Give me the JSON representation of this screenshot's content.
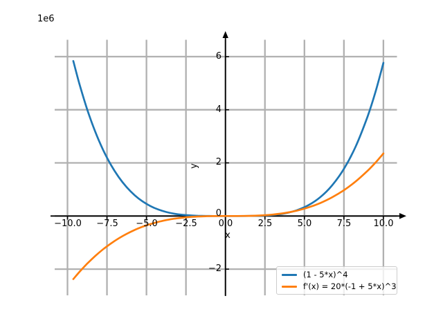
{
  "chart_data": {
    "type": "line",
    "xlabel": "x",
    "ylabel": "y",
    "y_offset_label": "1e6",
    "grid": true,
    "legend_position": "lower right",
    "xlim": [
      -10.8,
      11.3
    ],
    "ylim": [
      -3000000,
      6650000
    ],
    "x_tick_values": [
      -10,
      -7.5,
      -5,
      -2.5,
      0,
      2.5,
      5,
      7.5,
      10
    ],
    "x_tick_labels": [
      "−10.0",
      "−7.5",
      "−5.0",
      "−2.5",
      "0.0",
      "2.5",
      "5.0",
      "7.5",
      "10.0"
    ],
    "y_tick_values": [
      -2000000,
      0,
      2000000,
      4000000,
      6000000
    ],
    "y_tick_labels": [
      "−2",
      "0",
      "2",
      "4",
      "6"
    ],
    "series": [
      {
        "name": "(1 - 5*x)^4",
        "color": "#1f77b4",
        "x": [
          -9.63,
          -9.25,
          -8.75,
          -8.25,
          -7.75,
          -7.25,
          -6.75,
          -6.25,
          -5.75,
          -5.25,
          -4.75,
          -4.25,
          -3.75,
          -3.25,
          -2.75,
          -2.25,
          -1.75,
          -1.25,
          -0.75,
          0,
          0.75,
          1.5,
          2.25,
          3,
          3.75,
          4.5,
          5.25,
          6,
          6.75,
          7.5,
          8.25,
          9,
          9.5,
          10
        ],
        "y": [
          5835703,
          4984335,
          4010257,
          3186448,
          2496598,
          1925330,
          1458207,
          1081730,
          783336,
          551399,
          375233,
          245087,
          152149,
          88543,
          47333,
          22519,
          9037,
          2763,
          509,
          1,
          57,
          1785,
          11038,
          38416,
          99264,
          213675,
          406486,
          707281,
          1150390,
          1774890,
          2624603,
          3748096,
          4675325,
          5764801
        ]
      },
      {
        "name": "f'(x) = 20*(-1 + 5*x)^3",
        "color": "#ff7f0e",
        "x": [
          -9.63,
          -9.25,
          -8.75,
          -8.25,
          -7.75,
          -7.25,
          -6.75,
          -6.25,
          -5.75,
          -5.25,
          -4.75,
          -4.25,
          -3.75,
          -3.25,
          -2.75,
          -2.25,
          -1.75,
          -1.25,
          -0.75,
          0,
          0.75,
          1.5,
          2.25,
          3,
          3.75,
          4.5,
          5.25,
          6,
          6.75,
          7.5,
          8.25,
          9,
          9.5,
          10
        ],
        "y": [
          -2374654,
          -2109772,
          -1792294,
          -1508378,
          -1256150,
          -1033734,
          -839256,
          -670840,
          -526612,
          -404697,
          -303218,
          -220302,
          -154074,
          -102659,
          -64180,
          -36766,
          -18537,
          -7622,
          -2143,
          -20,
          416,
          5493,
          21540,
          54880,
          111848,
          198768,
          321970,
          487780,
          702528,
          972542,
          1304150,
          1703680,
          2010892,
          2352980
        ]
      }
    ]
  },
  "legend": {
    "entries": [
      {
        "label": "(1 - 5*x)^4",
        "color": "#1f77b4"
      },
      {
        "label": "f'(x) = 20*(-1 + 5*x)^3",
        "color": "#ff7f0e"
      }
    ]
  },
  "colors": {
    "grid": "#b0b0b0",
    "axis": "#000000",
    "background": "#ffffff",
    "legend_border": "#cccccc"
  }
}
